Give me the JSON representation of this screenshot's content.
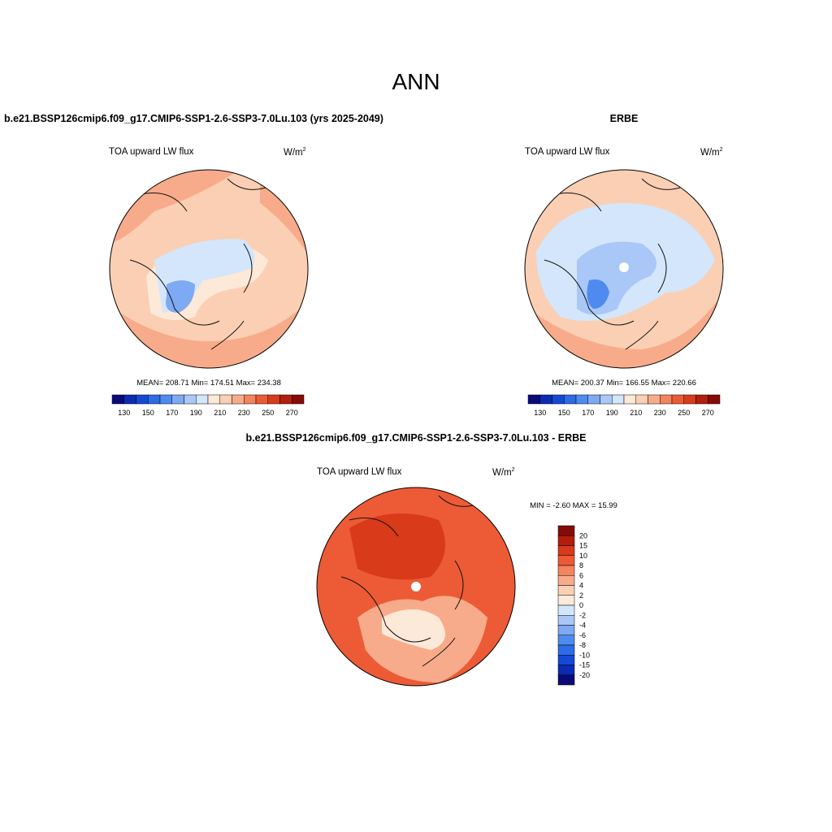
{
  "title": "ANN",
  "panels": [
    {
      "title": "b.e21.BSSP126cmip6.f09_g17.CMIP6-SSP1-2.6-SSP3-7.0Lu.103 (yrs 2025-2049)",
      "field": "TOA upward LW flux",
      "units": "W/m",
      "units_sup": "2",
      "stats": "MEAN= 208.71  Min= 174.51  Max= 234.38",
      "colorbar": {
        "labels": [
          "130",
          "150",
          "170",
          "190",
          "210",
          "230",
          "250",
          "270"
        ],
        "colors": [
          "#0a0a78",
          "#0b2bb3",
          "#1548d6",
          "#2c6ce6",
          "#4f8bee",
          "#7ea9f3",
          "#a9c7f7",
          "#d3e6fc",
          "#fde9d8",
          "#fbcfb3",
          "#f8ab8a",
          "#f4835f",
          "#ec5b36",
          "#d83a1a",
          "#b21d0c",
          "#860a05"
        ]
      }
    },
    {
      "title": "ERBE",
      "field": "TOA upward LW flux",
      "units": "W/m",
      "units_sup": "2",
      "stats": "MEAN= 200.37  Min= 166.55  Max= 220.66",
      "colorbar": {
        "labels": [
          "130",
          "150",
          "170",
          "190",
          "210",
          "230",
          "250",
          "270"
        ],
        "colors": [
          "#0a0a78",
          "#0b2bb3",
          "#1548d6",
          "#2c6ce6",
          "#4f8bee",
          "#7ea9f3",
          "#a9c7f7",
          "#d3e6fc",
          "#fde9d8",
          "#fbcfb3",
          "#f8ab8a",
          "#f4835f",
          "#ec5b36",
          "#d83a1a",
          "#b21d0c",
          "#860a05"
        ]
      }
    },
    {
      "title": "b.e21.BSSP126cmip6.f09_g17.CMIP6-SSP1-2.6-SSP3-7.0Lu.103 - ERBE",
      "field": "TOA upward LW flux",
      "units": "W/m",
      "units_sup": "2",
      "stats": "MIN =  -2.60 MAX =  15.99",
      "colorbar": {
        "labels": [
          "20",
          "15",
          "10",
          "8",
          "6",
          "4",
          "2",
          "0",
          "-2",
          "-4",
          "-6",
          "-8",
          "-10",
          "-15",
          "-20"
        ],
        "colors": [
          "#860a05",
          "#b21d0c",
          "#d83a1a",
          "#ec5b36",
          "#f4835f",
          "#f8ab8a",
          "#fbcfb3",
          "#fde9d8",
          "#d3e6fc",
          "#a9c7f7",
          "#7ea9f3",
          "#4f8bee",
          "#2c6ce6",
          "#1548d6",
          "#0b2bb3",
          "#0a0a78"
        ]
      }
    }
  ]
}
